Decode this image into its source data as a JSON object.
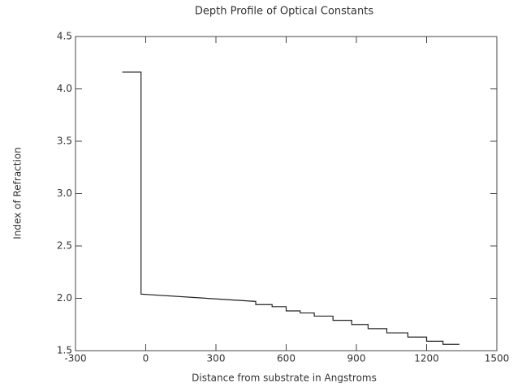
{
  "chart_data": {
    "type": "line",
    "title": "Depth Profile of Optical Constants",
    "x_label": "Distance from substrate in Angstroms",
    "y_label": "Index of Refraction",
    "x": [
      -100,
      -20,
      -20,
      470,
      470,
      540,
      540,
      600,
      600,
      660,
      660,
      720,
      720,
      800,
      800,
      880,
      880,
      950,
      950,
      1030,
      1030,
      1120,
      1120,
      1200,
      1200,
      1270,
      1270,
      1340
    ],
    "values": [
      4.16,
      4.16,
      2.04,
      1.97,
      1.94,
      1.94,
      1.92,
      1.92,
      1.88,
      1.88,
      1.86,
      1.86,
      1.83,
      1.83,
      1.79,
      1.79,
      1.75,
      1.75,
      1.71,
      1.71,
      1.67,
      1.67,
      1.63,
      1.63,
      1.59,
      1.59,
      1.56,
      1.56
    ],
    "color": "#222222",
    "xlim": [
      -300,
      1500
    ],
    "xticks": [
      -300,
      0,
      300,
      600,
      900,
      1200,
      1500
    ],
    "ylim": [
      1.5,
      4.5
    ],
    "yticks": [
      1.5,
      {
        "value": 2,
        "label": "2.0"
      },
      2.5,
      {
        "value": 3,
        "label": "3.0"
      },
      3.5,
      {
        "value": 4,
        "label": "4.0"
      },
      4.5
    ]
  }
}
